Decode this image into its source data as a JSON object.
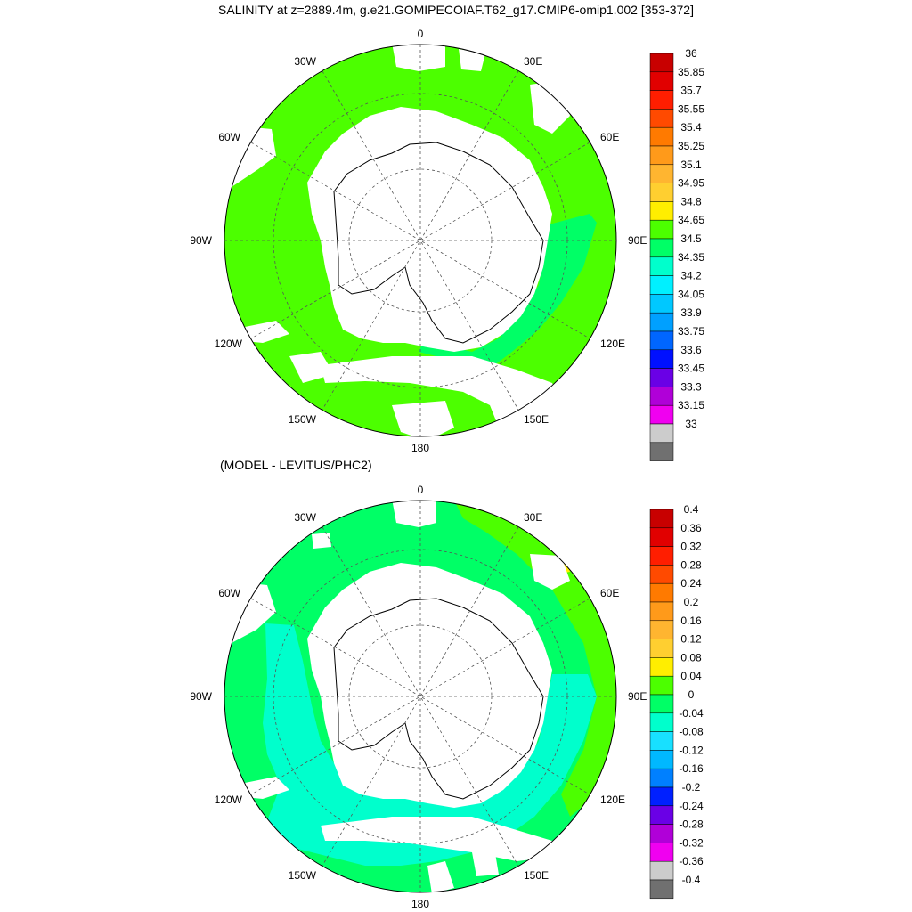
{
  "title": "SALINITY at z=2889.4m, g.e21.GOMIPECOIAF.T62_g17.CMIP6-omip1.002 [353-372]",
  "subtitle": "(MODEL - LEVITUS/PHC2)",
  "lon_labels": {
    "top": "0",
    "bottom": "180",
    "left": "90W",
    "right": "90E",
    "upper_left_1": "30W",
    "upper_left_2": "60W",
    "upper_right_1": "30E",
    "upper_right_2": "60E",
    "lower_left_1": "120W",
    "lower_left_2": "150W",
    "lower_right_1": "120E",
    "lower_right_2": "150E"
  },
  "colors": {
    "land": "#ffffff",
    "coast": "#000000",
    "grid": "#555555"
  },
  "panels": [
    {
      "name": "salinity",
      "fill_main": "#4cff00",
      "fill_low": "#00ff66",
      "colorbar": {
        "labels": [
          "36",
          "35.85",
          "35.7",
          "35.55",
          "35.4",
          "35.25",
          "35.1",
          "34.95",
          "34.8",
          "34.65",
          "34.5",
          "34.35",
          "34.2",
          "34.05",
          "33.9",
          "33.75",
          "33.6",
          "33.45",
          "33.3",
          "33.15",
          "33"
        ],
        "colors": [
          "#c80000",
          "#e10000",
          "#ff1e00",
          "#ff4a00",
          "#ff7a00",
          "#ff9a1a",
          "#ffb530",
          "#ffcf30",
          "#ffee00",
          "#4cff00",
          "#00ff66",
          "#00ffcc",
          "#00f0ff",
          "#00c8ff",
          "#00a0ff",
          "#0066ff",
          "#0010ff",
          "#6a00e6",
          "#b000d8",
          "#f000f0",
          "#cccccc",
          "#707070"
        ]
      }
    },
    {
      "name": "difference",
      "fill_main": "#00ff66",
      "fill_low": "#00ffcc",
      "fill_high": "#4cff00",
      "fill_peak": "#ffee00",
      "colorbar": {
        "labels": [
          "0.4",
          "0.36",
          "0.32",
          "0.28",
          "0.24",
          "0.2",
          "0.16",
          "0.12",
          "0.08",
          "0.04",
          "0",
          "-0.04",
          "-0.08",
          "-0.12",
          "-0.16",
          "-0.2",
          "-0.24",
          "-0.28",
          "-0.32",
          "-0.36",
          "-0.4"
        ],
        "colors": [
          "#c80000",
          "#e10000",
          "#ff1e00",
          "#ff4a00",
          "#ff7a00",
          "#ff9a1a",
          "#ffb530",
          "#ffcf30",
          "#ffee00",
          "#4cff00",
          "#00ff66",
          "#00ffcc",
          "#18e0ff",
          "#00b8ff",
          "#0080ff",
          "#0020ff",
          "#6a00e6",
          "#b000d8",
          "#f000f0",
          "#cccccc",
          "#707070"
        ]
      }
    }
  ]
}
